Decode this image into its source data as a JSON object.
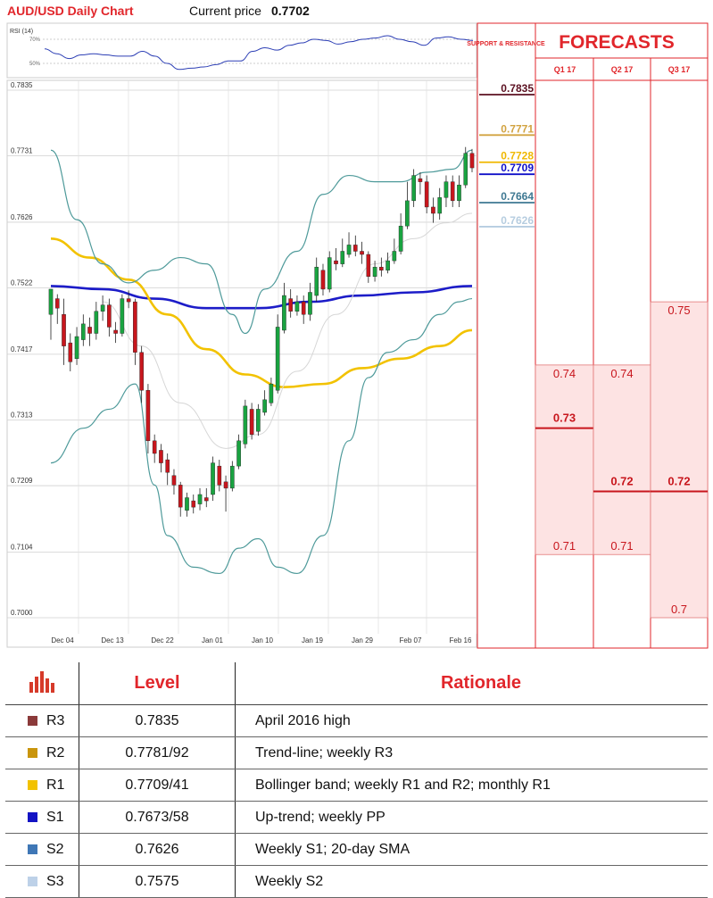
{
  "header": {
    "title": "AUD/USD Daily Chart",
    "price_label": "Current price",
    "price_value": "0.7702"
  },
  "rsi_label": "RSI (14)",
  "rsi_levels": [
    "70%",
    "50%"
  ],
  "side_panel": {
    "sr_title": "SUPPORT & RESISTANCE",
    "forecasts_title": "FORECASTS",
    "quarters": [
      "Q1 17",
      "Q2 17",
      "Q3 17"
    ]
  },
  "sr_levels": [
    {
      "value": 0.7835,
      "label": "0.7835",
      "color": "#5b1020"
    },
    {
      "value": 0.7771,
      "label": "0.7771",
      "color": "#d2a341"
    },
    {
      "value": 0.7728,
      "label": "0.7728",
      "color": "#f0b800"
    },
    {
      "value": 0.7709,
      "label": "0.7709",
      "color": "#1010c8"
    },
    {
      "value": 0.7664,
      "label": "0.7664",
      "color": "#3e7892"
    },
    {
      "value": 0.7626,
      "label": "0.7626",
      "color": "#b6cde0"
    }
  ],
  "forecasts": [
    {
      "quarter": "Q1 17",
      "high": "0.74",
      "high_value": 0.74,
      "median": "0.73",
      "median_value": 0.73,
      "low": "0.71",
      "low_value": 0.71
    },
    {
      "quarter": "Q2 17",
      "high": "0.74",
      "high_value": 0.74,
      "median": "0.72",
      "median_value": 0.72,
      "low": "0.71",
      "low_value": 0.71
    },
    {
      "quarter": "Q3 17",
      "high": "0.75",
      "high_value": 0.75,
      "median": "0.72",
      "median_value": 0.72,
      "low": "0.7",
      "low_value": 0.7
    }
  ],
  "chart_data": {
    "type": "candlestick",
    "title": "AUD/USD Daily Chart",
    "ylim": [
      0.7,
      0.7835
    ],
    "y_ticks": [
      "0.7835",
      "0.7731",
      "0.7626",
      "0.7522",
      "0.7417",
      "0.7313",
      "0.7209",
      "0.7104",
      "0.7000"
    ],
    "x_ticks": [
      "Dec 04",
      "Dec 13",
      "Dec 22",
      "Jan 01",
      "Jan 10",
      "Jan 19",
      "Jan 29",
      "Feb 07",
      "Feb 16"
    ],
    "candles": [
      [
        0.748,
        0.752,
        0.75,
        0.744
      ],
      [
        0.7505,
        0.749,
        0.7512,
        0.7465
      ],
      [
        0.748,
        0.743,
        0.7505,
        0.74
      ],
      [
        0.7435,
        0.7405,
        0.745,
        0.739
      ],
      [
        0.741,
        0.7445,
        0.746,
        0.74
      ],
      [
        0.744,
        0.7465,
        0.748,
        0.743
      ],
      [
        0.746,
        0.745,
        0.7475,
        0.743
      ],
      [
        0.745,
        0.7485,
        0.75,
        0.744
      ],
      [
        0.7485,
        0.7495,
        0.751,
        0.747
      ],
      [
        0.7495,
        0.746,
        0.7505,
        0.7445
      ],
      [
        0.7455,
        0.745,
        0.7468,
        0.7435
      ],
      [
        0.745,
        0.7505,
        0.7512,
        0.7445
      ],
      [
        0.7505,
        0.75,
        0.7518,
        0.749
      ],
      [
        0.75,
        0.742,
        0.7505,
        0.74
      ],
      [
        0.742,
        0.736,
        0.743,
        0.734
      ],
      [
        0.736,
        0.728,
        0.737,
        0.726
      ],
      [
        0.728,
        0.726,
        0.729,
        0.7245
      ],
      [
        0.7265,
        0.7245,
        0.7275,
        0.723
      ],
      [
        0.725,
        0.723,
        0.726,
        0.721
      ],
      [
        0.7225,
        0.721,
        0.7235,
        0.7195
      ],
      [
        0.721,
        0.7175,
        0.7215,
        0.716
      ],
      [
        0.717,
        0.719,
        0.7198,
        0.716
      ],
      [
        0.7185,
        0.7175,
        0.7195,
        0.7165
      ],
      [
        0.718,
        0.7195,
        0.7205,
        0.717
      ],
      [
        0.719,
        0.7185,
        0.7205,
        0.7175
      ],
      [
        0.7195,
        0.7245,
        0.7255,
        0.7185
      ],
      [
        0.724,
        0.721,
        0.725,
        0.72
      ],
      [
        0.7215,
        0.7205,
        0.7225,
        0.7168
      ],
      [
        0.7205,
        0.724,
        0.7248,
        0.72
      ],
      [
        0.724,
        0.728,
        0.729,
        0.7235
      ],
      [
        0.7275,
        0.7335,
        0.7345,
        0.7268
      ],
      [
        0.733,
        0.729,
        0.734,
        0.7282
      ],
      [
        0.7295,
        0.733,
        0.7338,
        0.7288
      ],
      [
        0.7325,
        0.7345,
        0.736,
        0.732
      ],
      [
        0.734,
        0.737,
        0.738,
        0.7335
      ],
      [
        0.736,
        0.746,
        0.748,
        0.7355
      ],
      [
        0.7455,
        0.751,
        0.753,
        0.745
      ],
      [
        0.7505,
        0.7485,
        0.752,
        0.7475
      ],
      [
        0.7485,
        0.75,
        0.751,
        0.7478
      ],
      [
        0.75,
        0.748,
        0.751,
        0.7465
      ],
      [
        0.748,
        0.7515,
        0.753,
        0.747
      ],
      [
        0.751,
        0.7555,
        0.757,
        0.75
      ],
      [
        0.755,
        0.752,
        0.756,
        0.751
      ],
      [
        0.752,
        0.757,
        0.758,
        0.7515
      ],
      [
        0.7565,
        0.756,
        0.7585,
        0.755
      ],
      [
        0.756,
        0.758,
        0.76,
        0.7555
      ],
      [
        0.7575,
        0.759,
        0.761,
        0.757
      ],
      [
        0.759,
        0.758,
        0.7605,
        0.7572
      ],
      [
        0.758,
        0.7575,
        0.7595,
        0.756
      ],
      [
        0.7575,
        0.754,
        0.758,
        0.753
      ],
      [
        0.754,
        0.7555,
        0.7565,
        0.7532
      ],
      [
        0.7555,
        0.755,
        0.757,
        0.754
      ],
      [
        0.755,
        0.7565,
        0.7578,
        0.7545
      ],
      [
        0.7565,
        0.758,
        0.76,
        0.756
      ],
      [
        0.758,
        0.762,
        0.764,
        0.7575
      ],
      [
        0.762,
        0.766,
        0.769,
        0.7615
      ],
      [
        0.766,
        0.77,
        0.771,
        0.765
      ],
      [
        0.7695,
        0.769,
        0.7705,
        0.767
      ],
      [
        0.769,
        0.765,
        0.77,
        0.764
      ],
      [
        0.765,
        0.764,
        0.7665,
        0.7625
      ],
      [
        0.764,
        0.7665,
        0.768,
        0.763
      ],
      [
        0.7665,
        0.769,
        0.77,
        0.765
      ],
      [
        0.769,
        0.766,
        0.77,
        0.765
      ],
      [
        0.766,
        0.7685,
        0.77,
        0.765
      ],
      [
        0.7685,
        0.7735,
        0.7745,
        0.768
      ],
      [
        0.7735,
        0.7712,
        0.7742,
        0.7705
      ]
    ],
    "series": [
      {
        "type": "sma-200",
        "color": "#1c1cc8",
        "values": [
          [
            0,
            0.7525
          ],
          [
            8,
            0.752
          ],
          [
            16,
            0.7505
          ],
          [
            24,
            0.749
          ],
          [
            32,
            0.749
          ],
          [
            40,
            0.75
          ],
          [
            48,
            0.751
          ],
          [
            56,
            0.7515
          ],
          [
            65,
            0.7525
          ]
        ]
      },
      {
        "type": "sma-100",
        "color": "#f2c200",
        "values": [
          [
            0,
            0.76
          ],
          [
            6,
            0.757
          ],
          [
            12,
            0.7535
          ],
          [
            18,
            0.748
          ],
          [
            24,
            0.7425
          ],
          [
            30,
            0.7385
          ],
          [
            36,
            0.7365
          ],
          [
            42,
            0.737
          ],
          [
            48,
            0.7395
          ],
          [
            54,
            0.741
          ],
          [
            60,
            0.743
          ],
          [
            65,
            0.7455
          ]
        ]
      },
      {
        "type": "sma-20",
        "color": "#d6d6d6",
        "values": [
          [
            8,
            0.75
          ],
          [
            14,
            0.743
          ],
          [
            20,
            0.734
          ],
          [
            27,
            0.7268
          ],
          [
            32,
            0.729
          ],
          [
            38,
            0.739
          ],
          [
            44,
            0.748
          ],
          [
            50,
            0.756
          ],
          [
            56,
            0.76
          ],
          [
            61,
            0.7625
          ],
          [
            65,
            0.764
          ]
        ]
      },
      {
        "type": "bollinger-upper",
        "color": "#4e9a9a",
        "values": [
          [
            0,
            0.774
          ],
          [
            4,
            0.763
          ],
          [
            8,
            0.756
          ],
          [
            12,
            0.753
          ],
          [
            16,
            0.755
          ],
          [
            20,
            0.757
          ],
          [
            24,
            0.756
          ],
          [
            28,
            0.748
          ],
          [
            30,
            0.745
          ],
          [
            33,
            0.752
          ],
          [
            38,
            0.758
          ],
          [
            42,
            0.767
          ],
          [
            46,
            0.77
          ],
          [
            50,
            0.769
          ],
          [
            54,
            0.769
          ],
          [
            58,
            0.7705
          ],
          [
            62,
            0.771
          ],
          [
            65,
            0.774
          ]
        ]
      },
      {
        "type": "bollinger-lower",
        "color": "#4e9a9a",
        "values": [
          [
            0,
            0.7245
          ],
          [
            5,
            0.73
          ],
          [
            9,
            0.733
          ],
          [
            13,
            0.737
          ],
          [
            16,
            0.721
          ],
          [
            18,
            0.713
          ],
          [
            22,
            0.708
          ],
          [
            26,
            0.707
          ],
          [
            29,
            0.711
          ],
          [
            32,
            0.7125
          ],
          [
            35,
            0.708
          ],
          [
            38,
            0.707
          ],
          [
            42,
            0.713
          ],
          [
            46,
            0.728
          ],
          [
            49,
            0.738
          ],
          [
            52,
            0.742
          ],
          [
            56,
            0.744
          ],
          [
            60,
            0.748
          ],
          [
            63,
            0.75
          ],
          [
            65,
            0.7505
          ]
        ]
      }
    ],
    "rsi": [
      0.62,
      0.58,
      0.54,
      0.57,
      0.58,
      0.57,
      0.56,
      0.56,
      0.6,
      0.56,
      0.5,
      0.45,
      0.46,
      0.47,
      0.49,
      0.52,
      0.52,
      0.6,
      0.63,
      0.61,
      0.65,
      0.67,
      0.7,
      0.69,
      0.66,
      0.68,
      0.7,
      0.71,
      0.73,
      0.7,
      0.68,
      0.65,
      0.71,
      0.72,
      0.7,
      0.69
    ]
  },
  "table": {
    "headers": {
      "icon": "bar-chart-icon",
      "level": "Level",
      "rationale": "Rationale"
    },
    "rows": [
      {
        "label": "R3",
        "color": "#8b3a3a",
        "level": "0.7835",
        "rationale": "April 2016 high"
      },
      {
        "label": "R2",
        "color": "#c9950c",
        "level": "0.7781/92",
        "rationale": "Trend-line; weekly R3"
      },
      {
        "label": "R1",
        "color": "#f2c200",
        "level": "0.7709/41",
        "rationale": "Bollinger band; weekly R1 and R2; monthly R1"
      },
      {
        "label": "S1",
        "color": "#1313c4",
        "level": "0.7673/58",
        "rationale": "Up-trend; weekly PP"
      },
      {
        "label": "S2",
        "color": "#3f77b6",
        "level": "0.7626",
        "rationale": "Weekly S1; 20-day SMA"
      },
      {
        "label": "S3",
        "color": "#bdd1e8",
        "level": "0.7575",
        "rationale": "Weekly S2"
      }
    ]
  }
}
